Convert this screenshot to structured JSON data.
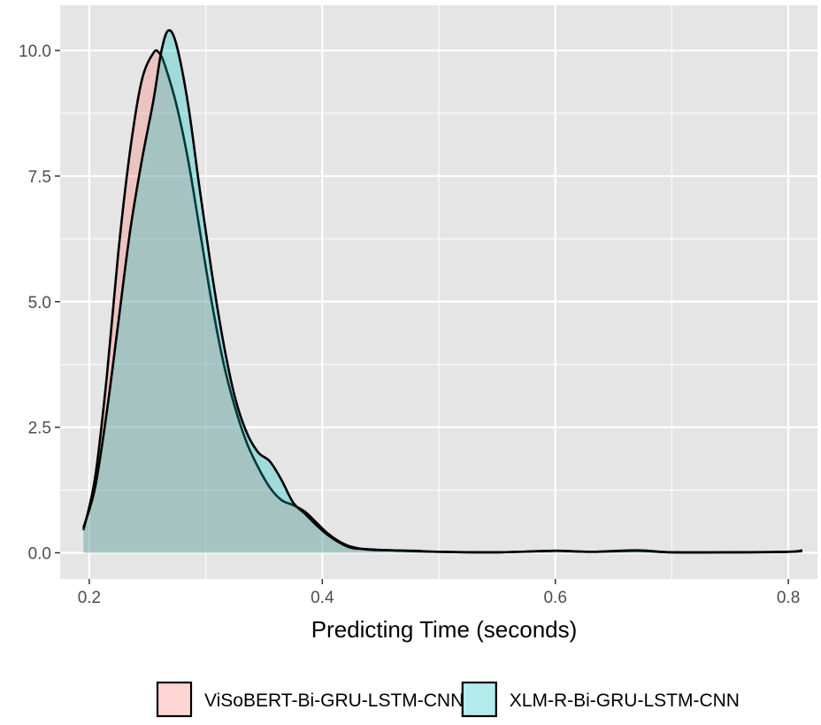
{
  "colors": {
    "panel": "#e5e5e5",
    "grid": "#ffffff",
    "tick": "#333333",
    "outline": "#000000"
  },
  "chart_data": {
    "type": "area",
    "title": "",
    "xlabel": "Predicting Time (seconds)",
    "ylabel": "",
    "xlim": [
      0.175,
      0.825
    ],
    "ylim": [
      -0.52,
      10.9
    ],
    "x_ticks": [
      0.2,
      0.4,
      0.6,
      0.8
    ],
    "x_tick_labels": [
      "0.2",
      "0.4",
      "0.6",
      "0.8"
    ],
    "y_ticks": [
      0.0,
      2.5,
      5.0,
      7.5,
      10.0
    ],
    "y_tick_labels": [
      "0.0",
      "2.5",
      "5.0",
      "7.5",
      "10.0"
    ],
    "grid": true,
    "legend_position": "bottom",
    "series": [
      {
        "name": "ViSoBERT-Bi-GRU-LSTM-CNN",
        "color": "#f8766d",
        "points": [
          [
            0.195,
            0.45
          ],
          [
            0.205,
            1.5
          ],
          [
            0.215,
            3.5
          ],
          [
            0.225,
            6.0
          ],
          [
            0.235,
            8.0
          ],
          [
            0.245,
            9.4
          ],
          [
            0.255,
            9.95
          ],
          [
            0.26,
            9.95
          ],
          [
            0.265,
            9.7
          ],
          [
            0.275,
            8.9
          ],
          [
            0.285,
            7.8
          ],
          [
            0.295,
            6.4
          ],
          [
            0.305,
            5.0
          ],
          [
            0.315,
            3.8
          ],
          [
            0.325,
            2.9
          ],
          [
            0.335,
            2.2
          ],
          [
            0.345,
            1.7
          ],
          [
            0.355,
            1.3
          ],
          [
            0.365,
            1.05
          ],
          [
            0.375,
            0.95
          ],
          [
            0.385,
            0.82
          ],
          [
            0.395,
            0.6
          ],
          [
            0.405,
            0.38
          ],
          [
            0.415,
            0.22
          ],
          [
            0.425,
            0.12
          ],
          [
            0.44,
            0.06
          ],
          [
            0.46,
            0.05
          ],
          [
            0.48,
            0.03
          ],
          [
            0.5,
            0.02
          ],
          [
            0.55,
            0.01
          ],
          [
            0.6,
            0.04
          ],
          [
            0.63,
            0.02
          ],
          [
            0.67,
            0.04
          ],
          [
            0.7,
            0.01
          ],
          [
            0.75,
            0.01
          ],
          [
            0.8,
            0.02
          ],
          [
            0.812,
            0.04
          ]
        ]
      },
      {
        "name": "XLM-R-Bi-GRU-LSTM-CNN",
        "color": "#00bfc4",
        "points": [
          [
            0.195,
            0.5
          ],
          [
            0.205,
            1.3
          ],
          [
            0.215,
            2.8
          ],
          [
            0.225,
            4.6
          ],
          [
            0.235,
            6.4
          ],
          [
            0.245,
            7.8
          ],
          [
            0.255,
            9.0
          ],
          [
            0.262,
            10.0
          ],
          [
            0.268,
            10.4
          ],
          [
            0.275,
            10.1
          ],
          [
            0.285,
            8.9
          ],
          [
            0.295,
            7.2
          ],
          [
            0.305,
            5.6
          ],
          [
            0.315,
            4.2
          ],
          [
            0.325,
            3.1
          ],
          [
            0.335,
            2.4
          ],
          [
            0.345,
            2.0
          ],
          [
            0.355,
            1.82
          ],
          [
            0.365,
            1.45
          ],
          [
            0.375,
            1.0
          ],
          [
            0.385,
            0.78
          ],
          [
            0.395,
            0.55
          ],
          [
            0.405,
            0.35
          ],
          [
            0.415,
            0.2
          ],
          [
            0.425,
            0.1
          ],
          [
            0.44,
            0.07
          ],
          [
            0.46,
            0.05
          ],
          [
            0.48,
            0.04
          ],
          [
            0.5,
            0.02
          ],
          [
            0.55,
            0.01
          ],
          [
            0.6,
            0.04
          ],
          [
            0.63,
            0.02
          ],
          [
            0.67,
            0.05
          ],
          [
            0.7,
            0.01
          ],
          [
            0.75,
            0.01
          ],
          [
            0.8,
            0.02
          ],
          [
            0.812,
            0.05
          ]
        ]
      }
    ]
  }
}
